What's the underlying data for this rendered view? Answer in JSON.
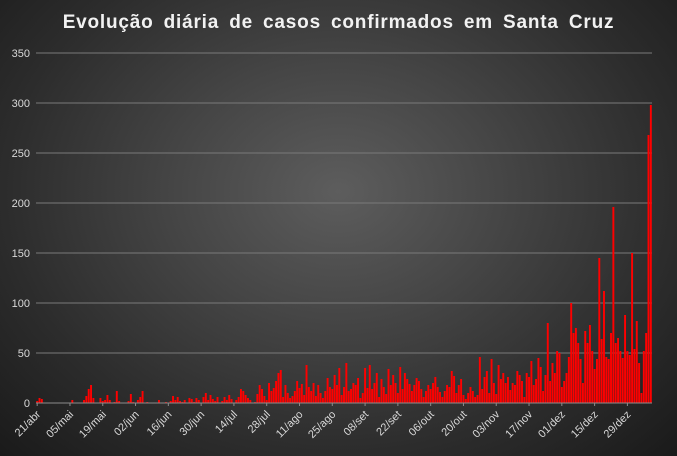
{
  "chart_data": {
    "type": "bar",
    "title": "Evolução  diária  de  casos  confirmados  em  Santa  Cruz",
    "xlabel": "",
    "ylabel": "",
    "ylim": [
      0,
      350
    ],
    "yticks": [
      0,
      50,
      100,
      150,
      200,
      250,
      300,
      350
    ],
    "x_tick_labels": [
      "21/abr",
      "05/mai",
      "19/mai",
      "02/jun",
      "16/jun",
      "30/jun",
      "14/jul",
      "28/jul",
      "11/ago",
      "25/ago",
      "08/set",
      "22/set",
      "06/out",
      "20/out",
      "03/nov",
      "17/nov",
      "01/dez",
      "15/dez",
      "29/dez"
    ],
    "grid": "horizontal",
    "legend": "none",
    "bar_color": "#ff0000",
    "first_day": "21/abr",
    "values": [
      2,
      5,
      4,
      0,
      0,
      0,
      0,
      0,
      0,
      0,
      0,
      0,
      0,
      0,
      0,
      3,
      0,
      0,
      0,
      0,
      3,
      7,
      14,
      18,
      5,
      0,
      0,
      5,
      2,
      3,
      8,
      3,
      0,
      1,
      12,
      2,
      0,
      0,
      0,
      2,
      9,
      1,
      0,
      3,
      6,
      12,
      0,
      1,
      0,
      0,
      0,
      0,
      3,
      0,
      0,
      1,
      0,
      2,
      7,
      3,
      6,
      2,
      1,
      3,
      0,
      5,
      4,
      1,
      5,
      3,
      0,
      6,
      10,
      3,
      8,
      4,
      2,
      6,
      0,
      2,
      6,
      3,
      8,
      4,
      0,
      3,
      6,
      14,
      12,
      8,
      5,
      3,
      0,
      1,
      9,
      18,
      14,
      7,
      3,
      20,
      12,
      15,
      22,
      30,
      33,
      6,
      18,
      10,
      5,
      7,
      12,
      22,
      15,
      19,
      8,
      38,
      16,
      12,
      20,
      7,
      18,
      10,
      5,
      12,
      25,
      16,
      14,
      28,
      18,
      35,
      8,
      16,
      40,
      12,
      14,
      20,
      18,
      25,
      5,
      10,
      35,
      15,
      38,
      14,
      20,
      30,
      6,
      24,
      16,
      9,
      34,
      18,
      28,
      20,
      10,
      36,
      14,
      30,
      24,
      19,
      12,
      18,
      25,
      22,
      14,
      6,
      12,
      18,
      14,
      20,
      26,
      16,
      11,
      6,
      12,
      18,
      16,
      32,
      27,
      10,
      18,
      24,
      8,
      4,
      10,
      16,
      12,
      6,
      8,
      46,
      14,
      26,
      32,
      10,
      44,
      20,
      9,
      38,
      24,
      30,
      20,
      26,
      13,
      20,
      18,
      32,
      28,
      22,
      6,
      30,
      26,
      42,
      18,
      24,
      45,
      36,
      12,
      28,
      80,
      22,
      40,
      30,
      52,
      50,
      16,
      22,
      30,
      46,
      100,
      70,
      75,
      60,
      44,
      20,
      72,
      60,
      78,
      52,
      34,
      44,
      145,
      64,
      112,
      46,
      44,
      70,
      196,
      60,
      65,
      52,
      45,
      88,
      52,
      48,
      150,
      54,
      82,
      40,
      10,
      52,
      70,
      268,
      298
    ]
  }
}
